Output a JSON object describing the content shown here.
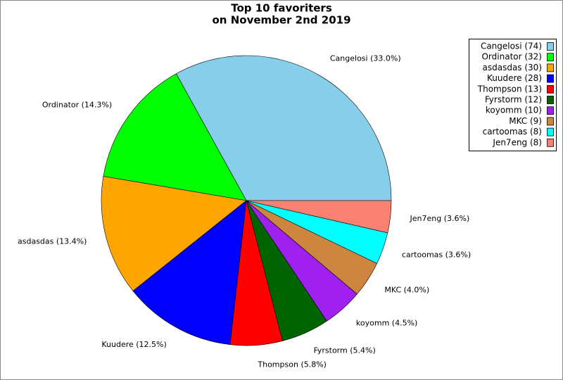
{
  "chart_data": {
    "type": "pie",
    "title": "Top 10 favoriters",
    "subtitle": "on November 2nd 2019",
    "categories": [
      "Cangelosi",
      "Ordinator",
      "asdasdas",
      "Kuudere",
      "Thompson",
      "Fyrstorm",
      "koyomm",
      "MKC",
      "cartoomas",
      "Jen7eng"
    ],
    "values": [
      74,
      32,
      30,
      28,
      13,
      12,
      10,
      9,
      8,
      8
    ],
    "legend_labels": [
      "Cangelosi (74)",
      "Ordinator (32)",
      "asdasdas (30)",
      "Kuudere (28)",
      "Thompson (13)",
      "Fyrstorm (12)",
      "koyomm (10)",
      "MKC (9)",
      "cartoomas (8)",
      "Jen7eng (8)"
    ],
    "slice_labels": [
      "Cangelosi (33.0%)",
      "Ordinator (14.3%)",
      "asdasdas (13.4%)",
      "Kuudere (12.5%)",
      "Thompson (5.8%)",
      "Fyrstorm (5.4%)",
      "koyomm (4.5%)",
      "MKC (4.0%)",
      "cartoomas (3.6%)",
      "Jen7eng (3.6%)"
    ],
    "colors": [
      "#87ceeb",
      "#00ff00",
      "#ffa500",
      "#0000ff",
      "#ff0000",
      "#006400",
      "#a020f0",
      "#cd853f",
      "#00ffff",
      "#fa8072"
    ],
    "legend_position": "upper right"
  }
}
